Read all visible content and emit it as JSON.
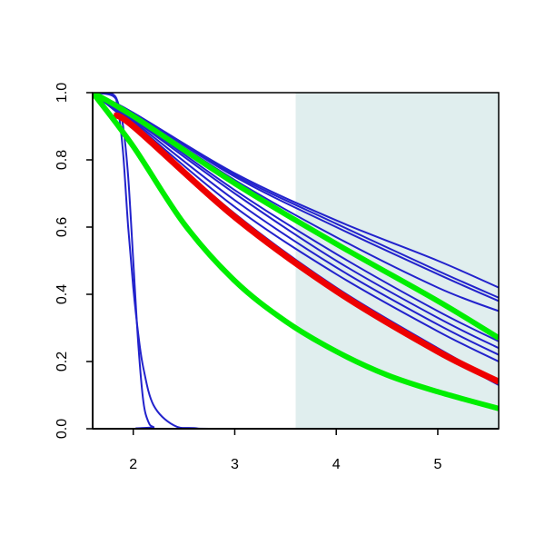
{
  "chart_data": {
    "type": "line",
    "title": "",
    "xlabel": "",
    "ylabel": "",
    "xlim": [
      1.6,
      5.6
    ],
    "ylim": [
      0.0,
      1.0
    ],
    "x_ticks": [
      2,
      3,
      4,
      5
    ],
    "x_tick_labels": [
      "2",
      "3",
      "4",
      "5"
    ],
    "y_ticks": [
      0.0,
      0.2,
      0.4,
      0.6,
      0.8,
      1.0
    ],
    "y_tick_labels": [
      "0.0",
      "0.2",
      "0.4",
      "0.6",
      "0.8",
      "1.0"
    ],
    "grid": false,
    "legend": "none",
    "shaded_region": {
      "x_start": 3.6,
      "x_end": 5.6,
      "color": "#e0eeee"
    },
    "colors": {
      "blue": "#2222cc",
      "red": "#ee0000",
      "green": "#00ee00"
    },
    "series": [
      {
        "color": "blue",
        "width": 2,
        "x": [
          1.6,
          1.8,
          1.85,
          1.9,
          1.95,
          2.0,
          2.05,
          2.1,
          2.2,
          2.4,
          2.6,
          3.0,
          5.6
        ],
        "y": [
          1.0,
          0.99,
          0.95,
          0.82,
          0.6,
          0.42,
          0.28,
          0.18,
          0.07,
          0.01,
          0.002,
          0.0,
          0.0
        ]
      },
      {
        "color": "blue",
        "width": 2,
        "x": [
          1.6,
          1.7,
          1.8,
          1.85,
          1.9,
          1.95,
          2.0,
          2.05,
          2.1,
          2.15,
          2.2,
          2.3,
          5.6
        ],
        "y": [
          1.0,
          1.0,
          0.995,
          0.97,
          0.9,
          0.75,
          0.5,
          0.25,
          0.08,
          0.02,
          0.005,
          0.0,
          0.0
        ]
      },
      {
        "color": "blue",
        "width": 2,
        "x": [
          1.6,
          2.0,
          3.0,
          4.0,
          5.0,
          5.6
        ],
        "y": [
          1.0,
          0.94,
          0.76,
          0.62,
          0.5,
          0.42
        ]
      },
      {
        "color": "blue",
        "width": 2,
        "x": [
          1.6,
          2.0,
          3.0,
          4.0,
          5.0,
          5.6
        ],
        "y": [
          1.0,
          0.94,
          0.755,
          0.61,
          0.47,
          0.39
        ]
      },
      {
        "color": "blue",
        "width": 2,
        "x": [
          1.6,
          2.0,
          3.0,
          4.0,
          5.0,
          5.6
        ],
        "y": [
          1.0,
          0.94,
          0.75,
          0.6,
          0.46,
          0.38
        ]
      },
      {
        "color": "blue",
        "width": 2,
        "x": [
          1.6,
          2.0,
          3.0,
          4.0,
          5.0,
          5.6
        ],
        "y": [
          1.0,
          0.935,
          0.74,
          0.57,
          0.42,
          0.35
        ]
      },
      {
        "color": "blue",
        "width": 2,
        "x": [
          1.6,
          2.0,
          3.0,
          4.0,
          5.0,
          5.6
        ],
        "y": [
          1.0,
          0.925,
          0.71,
          0.52,
          0.35,
          0.26
        ]
      },
      {
        "color": "blue",
        "width": 2,
        "x": [
          1.6,
          2.0,
          3.0,
          4.0,
          5.0,
          5.6
        ],
        "y": [
          1.0,
          0.92,
          0.7,
          0.5,
          0.33,
          0.24
        ]
      },
      {
        "color": "blue",
        "width": 2,
        "x": [
          1.6,
          2.0,
          3.0,
          4.0,
          5.0,
          5.6
        ],
        "y": [
          1.0,
          0.915,
          0.68,
          0.48,
          0.31,
          0.22
        ]
      },
      {
        "color": "blue",
        "width": 2,
        "x": [
          1.6,
          2.0,
          3.0,
          4.0,
          5.0,
          5.6
        ],
        "y": [
          1.0,
          0.91,
          0.66,
          0.46,
          0.29,
          0.2
        ]
      },
      {
        "color": "blue",
        "width": 2,
        "x": [
          1.6,
          2.0,
          3.0,
          4.0,
          5.0,
          5.6
        ],
        "y": [
          1.0,
          0.905,
          0.64,
          0.42,
          0.24,
          0.14
        ]
      },
      {
        "color": "blue",
        "width": 2,
        "x": [
          1.6,
          2.0,
          3.0,
          4.0,
          5.0,
          5.6
        ],
        "y": [
          1.0,
          0.9,
          0.63,
          0.41,
          0.23,
          0.13
        ]
      },
      {
        "color": "green",
        "width": 6,
        "x": [
          1.6,
          2.0,
          3.0,
          4.0,
          5.0,
          5.6
        ],
        "y": [
          1.0,
          0.93,
          0.73,
          0.55,
          0.38,
          0.27
        ]
      },
      {
        "color": "red",
        "width": 7,
        "x": [
          1.8,
          2.0,
          3.0,
          4.0,
          5.0,
          5.6
        ],
        "y": [
          0.93,
          0.9,
          0.63,
          0.41,
          0.23,
          0.14
        ]
      },
      {
        "color": "green",
        "width": 6,
        "x": [
          1.6,
          2.0,
          2.5,
          3.0,
          3.5,
          4.0,
          4.5,
          5.0,
          5.6
        ],
        "y": [
          1.0,
          0.84,
          0.61,
          0.44,
          0.32,
          0.23,
          0.16,
          0.11,
          0.06
        ]
      }
    ]
  }
}
